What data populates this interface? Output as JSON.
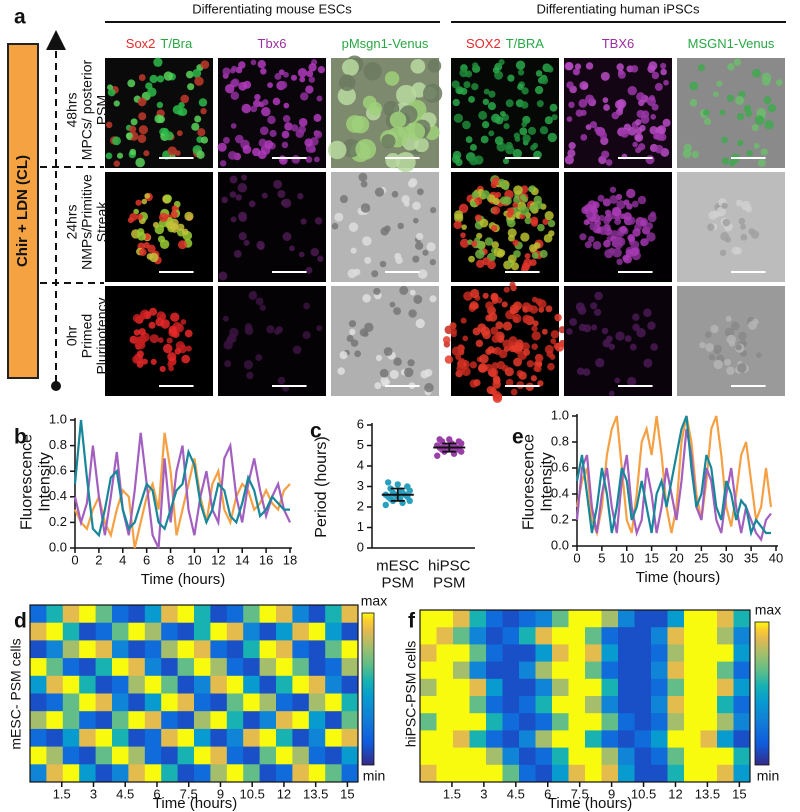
{
  "figure_a": {
    "label": "a",
    "treatment": "Chir + LDN (CL)",
    "groups": [
      {
        "title": "Differentiating mouse ESCs",
        "columns": [
          [
            {
              "text": "Sox2",
              "color": "#e32b2b"
            },
            {
              "text": "T/Bra",
              "color": "#27a844"
            }
          ],
          [
            {
              "text": "Tbx6",
              "color": "#9b2fa0"
            }
          ],
          [
            {
              "text": "pMsgn1-Venus",
              "color": "#27a844"
            }
          ]
        ]
      },
      {
        "title": "Differentiating human iPSCs",
        "columns": [
          [
            {
              "text": "SOX2",
              "color": "#e32b2b"
            },
            {
              "text": "T/BRA",
              "color": "#27a844"
            }
          ],
          [
            {
              "text": "TBX6",
              "color": "#9b2fa0"
            }
          ],
          [
            {
              "text": "MSGN1-Venus",
              "color": "#27a844"
            }
          ]
        ]
      }
    ],
    "stages": [
      {
        "time": "48hrs",
        "name": "MPCs/ posterior PSM"
      },
      {
        "time": "24hrs",
        "name": "NMPs/Primitive Streak"
      },
      {
        "time": "0hr",
        "name": "Primed Pluripotency"
      }
    ]
  },
  "chart_data": [
    {
      "type": "line",
      "label": "b",
      "x_label": "Time (hours)",
      "y_label": "Fluorescence Intensity",
      "xlim": [
        0,
        18
      ],
      "xticks": [
        0,
        2,
        4,
        6,
        8,
        10,
        12,
        14,
        16,
        18
      ],
      "ylim": [
        0,
        1
      ],
      "yticks": [
        {
          "value": 0,
          "label": "0.0"
        },
        0.2,
        0.4,
        0.6,
        0.8,
        {
          "value": 1,
          "label": "1.0"
        }
      ],
      "x": [
        0,
        0.5,
        1,
        1.5,
        2,
        2.5,
        3,
        3.5,
        4,
        4.5,
        5,
        5.5,
        6,
        6.5,
        7,
        7.5,
        8,
        8.5,
        9,
        9.5,
        10,
        10.5,
        11,
        11.5,
        12,
        12.5,
        13,
        13.5,
        14,
        14.5,
        15,
        15.5,
        16,
        16.5,
        17,
        17.5,
        18
      ],
      "series": [
        {
          "color": "#f5a043",
          "values": [
            0.3,
            0.2,
            0.15,
            0.3,
            0.4,
            0.2,
            0.1,
            0.3,
            0.45,
            0.4,
            0.0,
            0.2,
            0.4,
            0.5,
            0.3,
            0.9,
            0.6,
            0.1,
            0.3,
            0.5,
            0.7,
            0.4,
            0.2,
            0.5,
            0.6,
            0.3,
            0.2,
            0.4,
            0.5,
            0.45,
            0.3,
            0.35,
            0.45,
            0.35,
            0.3,
            0.45,
            0.5
          ]
        },
        {
          "color": "#a35fbf",
          "values": [
            0.4,
            0.2,
            0.35,
            0.8,
            0.4,
            0.1,
            0.4,
            0.75,
            0.3,
            0.1,
            0.45,
            0.9,
            0.5,
            0.1,
            0.0,
            0.7,
            0.2,
            0.6,
            0.8,
            0.3,
            0.1,
            0.4,
            0.6,
            0.3,
            0.2,
            0.7,
            0.8,
            0.4,
            0.2,
            0.5,
            0.7,
            0.45,
            0.25,
            0.4,
            0.5,
            0.3,
            0.2
          ]
        },
        {
          "color": "#17879a",
          "values": [
            0.5,
            1.0,
            0.55,
            0.15,
            0.1,
            0.3,
            0.55,
            0.6,
            0.3,
            0.15,
            0.2,
            0.35,
            0.5,
            0.45,
            0.2,
            0.15,
            0.3,
            0.45,
            0.5,
            0.75,
            0.65,
            0.35,
            0.2,
            0.3,
            0.5,
            0.45,
            0.25,
            0.2,
            0.35,
            0.55,
            0.45,
            0.25,
            0.3,
            0.4,
            0.35,
            0.3,
            0.3
          ]
        }
      ]
    },
    {
      "type": "dot",
      "label": "c",
      "y_label": "Period (hours)",
      "categories": [
        "mESC PSM",
        "hiPSC PSM"
      ],
      "ylim": [
        0,
        6
      ],
      "yticks": [
        0,
        1,
        2,
        3,
        4,
        5,
        6
      ],
      "groups": [
        {
          "color": "#2aa0c0",
          "mean": 2.6,
          "sd": 0.3,
          "values": [
            2.1,
            2.2,
            2.3,
            2.3,
            2.4,
            2.4,
            2.5,
            2.5,
            2.5,
            2.6,
            2.6,
            2.6,
            2.7,
            2.7,
            2.8,
            2.8,
            2.9,
            3.0,
            3.1,
            3.2
          ]
        },
        {
          "color": "#9b3fa8",
          "mean": 4.9,
          "sd": 0.2,
          "values": [
            4.5,
            4.6,
            4.7,
            4.7,
            4.8,
            4.8,
            4.8,
            4.9,
            4.9,
            4.9,
            4.9,
            5.0,
            5.0,
            5.0,
            5.1,
            5.1,
            5.2,
            5.2,
            5.3,
            5.3
          ]
        }
      ]
    },
    {
      "type": "line",
      "label": "e",
      "x_label": "Time (hours)",
      "y_label": "Fluorescence Intensity",
      "xlim": [
        0,
        40
      ],
      "xticks": [
        0,
        5,
        10,
        15,
        20,
        25,
        30,
        35,
        40
      ],
      "ylim": [
        0,
        1
      ],
      "yticks": [
        {
          "value": 0,
          "label": "0.0"
        },
        0.2,
        0.4,
        0.6,
        0.8,
        {
          "value": 1,
          "label": "1.0"
        }
      ],
      "x": [
        0,
        1,
        2,
        3,
        4,
        5,
        6,
        7,
        8,
        9,
        10,
        11,
        12,
        13,
        14,
        15,
        16,
        17,
        18,
        19,
        20,
        21,
        22,
        23,
        24,
        25,
        26,
        27,
        28,
        29,
        30,
        31,
        32,
        33,
        34,
        35,
        36,
        37,
        38,
        39
      ],
      "series": [
        {
          "color": "#f5a043",
          "values": [
            0.3,
            0.5,
            0.6,
            0.2,
            0.1,
            0.3,
            0.7,
            0.9,
            1.0,
            0.6,
            0.2,
            0.1,
            0.4,
            0.8,
            0.9,
            0.7,
            1.0,
            0.7,
            0.3,
            0.1,
            0.3,
            0.8,
            1.0,
            0.8,
            0.4,
            0.2,
            0.5,
            0.9,
            1.0,
            0.7,
            0.3,
            0.15,
            0.4,
            0.7,
            0.8,
            0.5,
            0.2,
            0.3,
            0.6,
            0.3
          ]
        },
        {
          "color": "#a35fbf",
          "values": [
            0.2,
            0.6,
            0.7,
            0.3,
            0.1,
            0.4,
            0.6,
            0.3,
            0.1,
            0.5,
            0.7,
            0.3,
            0.1,
            0.2,
            0.6,
            0.4,
            0.1,
            0.3,
            0.6,
            0.4,
            0.2,
            0.5,
            0.9,
            0.7,
            0.3,
            0.2,
            0.6,
            0.5,
            0.2,
            0.1,
            0.4,
            0.6,
            0.3,
            0.1,
            0.3,
            0.2,
            0.1,
            0.05,
            0.2,
            0.25
          ]
        },
        {
          "color": "#17879a",
          "values": [
            0.5,
            0.7,
            0.4,
            0.1,
            0.3,
            0.6,
            0.4,
            0.1,
            0.3,
            0.6,
            0.5,
            0.2,
            0.3,
            0.5,
            0.3,
            0.1,
            0.4,
            0.5,
            0.3,
            0.5,
            0.7,
            0.9,
            1.0,
            0.6,
            0.3,
            0.4,
            0.7,
            0.6,
            0.3,
            0.2,
            0.5,
            0.4,
            0.2,
            0.35,
            0.3,
            0.1,
            0.2,
            0.15,
            0.1,
            0.1
          ]
        }
      ]
    },
    {
      "type": "heatmap",
      "label": "d",
      "x_label": "Time (hours)",
      "y_label": "mESC- PSM cells",
      "xlim": [
        0,
        15.5
      ],
      "xticks": [
        1.5,
        3,
        4.5,
        6,
        7.5,
        9,
        10.5,
        12,
        13.5,
        15
      ],
      "zlim": [
        0,
        9
      ],
      "colorbar": {
        "max": "max",
        "min": "min"
      },
      "values": [
        [
          2,
          5,
          8,
          9,
          6,
          2,
          1,
          4,
          8,
          9,
          5,
          1,
          2,
          6,
          9,
          8,
          3,
          1,
          5,
          8
        ],
        [
          8,
          9,
          5,
          1,
          2,
          6,
          9,
          7,
          2,
          1,
          5,
          9,
          8,
          3,
          1,
          4,
          8,
          9,
          4,
          1
        ],
        [
          1,
          3,
          7,
          9,
          8,
          3,
          1,
          2,
          7,
          9,
          8,
          2,
          1,
          5,
          9,
          8,
          2,
          1,
          6,
          9
        ],
        [
          9,
          6,
          2,
          1,
          5,
          9,
          8,
          3,
          1,
          6,
          9,
          7,
          2,
          1,
          7,
          9,
          6,
          1,
          2,
          7
        ],
        [
          4,
          8,
          9,
          5,
          1,
          2,
          7,
          9,
          6,
          1,
          3,
          8,
          9,
          4,
          1,
          5,
          9,
          8,
          3,
          1
        ],
        [
          1,
          2,
          6,
          9,
          8,
          3,
          1,
          4,
          9,
          8,
          2,
          1,
          6,
          9,
          7,
          2,
          1,
          7,
          9,
          5
        ],
        [
          7,
          9,
          6,
          2,
          1,
          6,
          9,
          8,
          2,
          1,
          7,
          9,
          5,
          1,
          3,
          8,
          9,
          4,
          1,
          6
        ],
        [
          2,
          1,
          4,
          8,
          9,
          5,
          1,
          2,
          8,
          9,
          4,
          1,
          3,
          8,
          9,
          5,
          1,
          3,
          9,
          8
        ],
        [
          9,
          7,
          2,
          1,
          6,
          9,
          7,
          2,
          1,
          5,
          9,
          8,
          2,
          1,
          6,
          9,
          7,
          2,
          1,
          4
        ],
        [
          3,
          8,
          9,
          4,
          1,
          3,
          8,
          9,
          5,
          1,
          2,
          7,
          9,
          6,
          1,
          2,
          8,
          9,
          6,
          2
        ]
      ]
    },
    {
      "type": "heatmap",
      "label": "f",
      "x_label": "Time (hours)",
      "y_label": "hiPSC-PSM cells",
      "xlim": [
        0,
        15.5
      ],
      "xticks": [
        1.5,
        3,
        4.5,
        6,
        7.5,
        9,
        10.5,
        12,
        13.5,
        15
      ],
      "zlim": [
        0,
        9
      ],
      "colorbar": {
        "max": "max",
        "min": "min"
      },
      "values": [
        [
          9,
          9,
          8,
          5,
          2,
          1,
          2,
          3,
          6,
          9,
          9,
          7,
          3,
          1,
          1,
          4,
          9,
          9,
          8,
          5
        ],
        [
          9,
          8,
          6,
          3,
          1,
          2,
          5,
          8,
          9,
          9,
          6,
          2,
          1,
          1,
          3,
          8,
          9,
          9,
          7,
          3
        ],
        [
          8,
          9,
          9,
          6,
          2,
          1,
          1,
          4,
          8,
          9,
          8,
          4,
          1,
          1,
          2,
          7,
          9,
          9,
          9,
          4
        ],
        [
          9,
          9,
          7,
          3,
          1,
          1,
          3,
          7,
          9,
          9,
          6,
          2,
          1,
          1,
          3,
          8,
          9,
          9,
          6,
          2
        ],
        [
          7,
          9,
          9,
          8,
          4,
          1,
          1,
          3,
          7,
          9,
          9,
          5,
          1,
          1,
          2,
          6,
          9,
          9,
          8,
          4
        ],
        [
          9,
          9,
          9,
          6,
          2,
          1,
          2,
          5,
          9,
          9,
          7,
          3,
          1,
          1,
          3,
          8,
          9,
          9,
          5,
          2
        ],
        [
          6,
          9,
          9,
          9,
          5,
          2,
          1,
          2,
          6,
          9,
          9,
          6,
          2,
          1,
          2,
          7,
          9,
          9,
          7,
          3
        ],
        [
          9,
          9,
          8,
          5,
          2,
          1,
          3,
          7,
          9,
          9,
          5,
          2,
          1,
          2,
          4,
          9,
          9,
          8,
          4,
          1
        ],
        [
          9,
          9,
          9,
          9,
          7,
          3,
          1,
          2,
          5,
          9,
          9,
          7,
          3,
          1,
          2,
          6,
          9,
          9,
          9,
          5
        ],
        [
          8,
          9,
          9,
          9,
          9,
          6,
          2,
          1,
          4,
          8,
          9,
          8,
          4,
          1,
          1,
          5,
          9,
          9,
          8,
          4
        ]
      ]
    }
  ]
}
